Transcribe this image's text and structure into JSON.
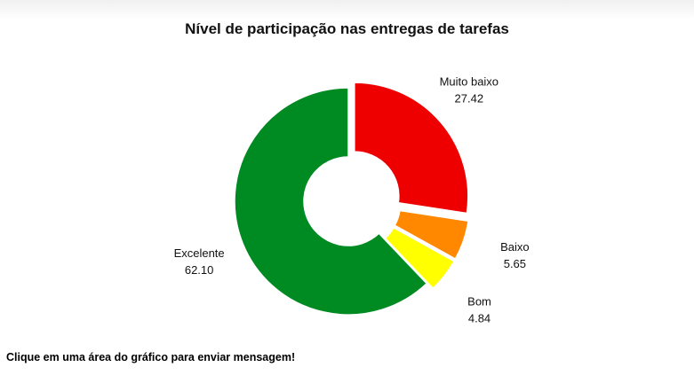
{
  "chart_data": {
    "type": "pie",
    "variant": "donut",
    "title": "Nível de participação nas entregas de tarefas",
    "categories": [
      "Muito baixo",
      "Baixo",
      "Bom",
      "Excelente"
    ],
    "values": [
      27.42,
      5.65,
      4.84,
      62.1
    ],
    "value_labels": [
      "27.42",
      "5.65",
      "4.84",
      "62.10"
    ],
    "colors": [
      "#ee0000",
      "#ff8800",
      "#ffff00",
      "#008a22"
    ],
    "exploded": [
      true,
      true,
      true,
      false
    ],
    "legend": "none"
  },
  "footer": {
    "message": "Clique em uma área do gráfico para enviar mensagem!"
  }
}
